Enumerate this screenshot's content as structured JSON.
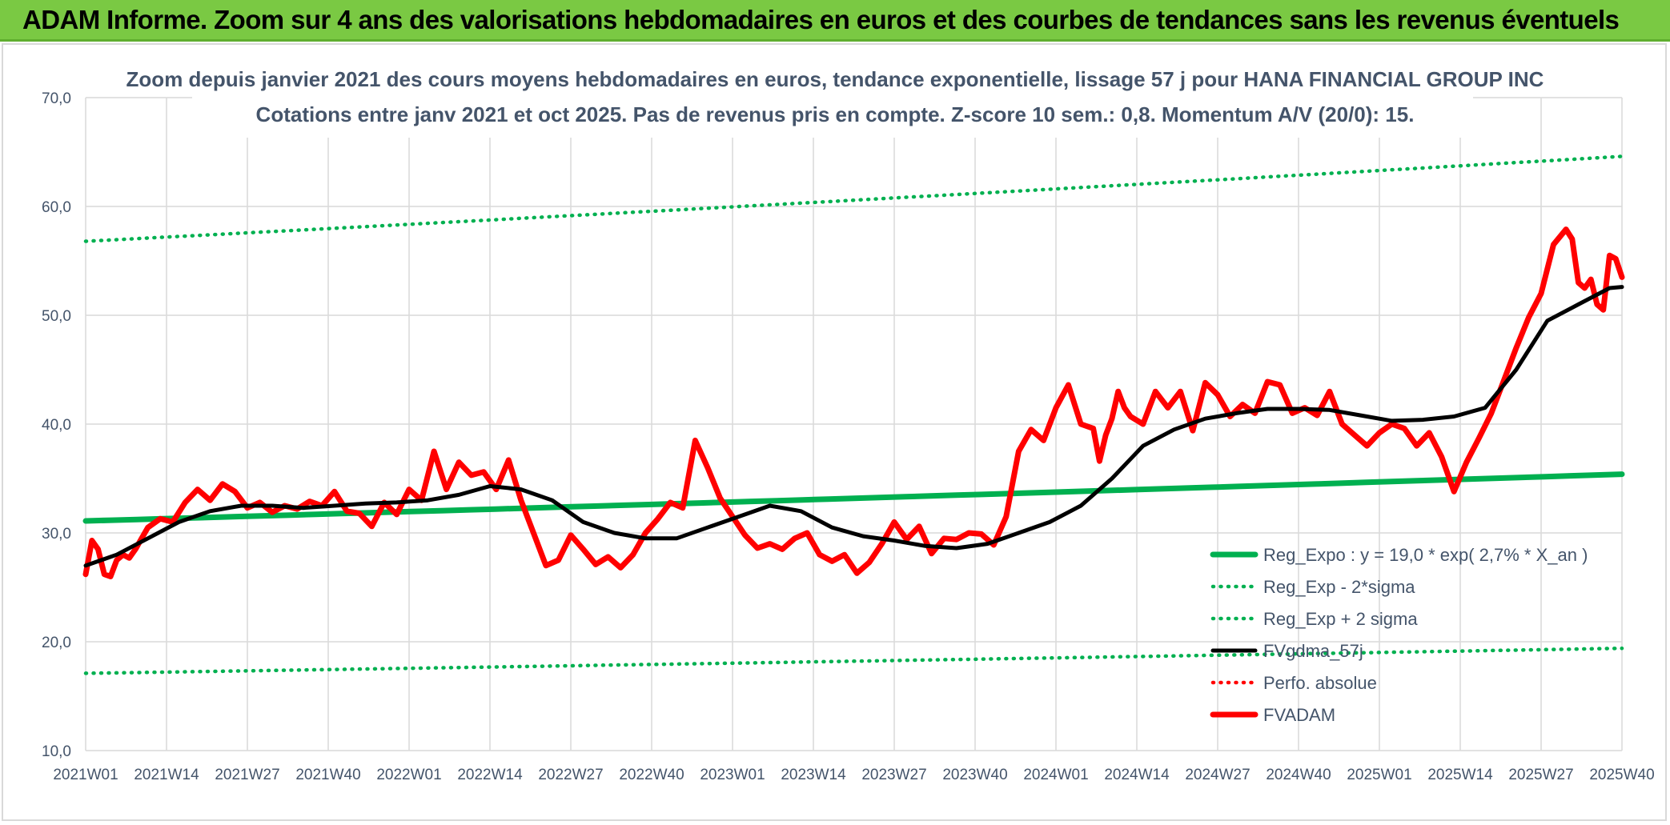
{
  "header": {
    "title": "ADAM Informe. Zoom sur 4 ans des valorisations hebdomadaires en euros et des courbes de tendances sans les revenus éventuels"
  },
  "colors": {
    "banner": "#7ac943",
    "reg_expo": "#00b050",
    "fvgdma": "#000000",
    "fvadam": "#ff0000",
    "perfo": "#ff0000",
    "text": "#44546a",
    "grid": "#d9d9d9"
  },
  "chart_data": {
    "type": "line",
    "title": "Zoom depuis janvier 2021 des cours moyens hebdomadaires en euros, tendance exponentielle, lissage 57 j pour HANA FINANCIAL GROUP INC",
    "subtitle": "Cotations entre janv 2021 et oct 2025. Pas de revenus pris en compte. Z-score 10 sem.: 0,8. Momentum A/V (20/0): 15.",
    "xlabel": "",
    "ylabel": "",
    "ylim": [
      10,
      70
    ],
    "y_ticks": [
      "70,0",
      "60,0",
      "50,0",
      "40,0",
      "30,0",
      "20,0",
      "10,0"
    ],
    "x_ticks": [
      "2021W01",
      "2021W14",
      "2021W27",
      "2021W40",
      "2022W01",
      "2022W14",
      "2022W27",
      "2022W40",
      "2023W01",
      "2023W14",
      "2023W27",
      "2023W40",
      "2024W01",
      "2024W14",
      "2024W27",
      "2024W40",
      "2025W01",
      "2025W14",
      "2025W27",
      "2025W40"
    ],
    "x_range_weeks": [
      0,
      247
    ],
    "legend_position": "bottom-right",
    "series": [
      {
        "name": "Reg_Expo : y = 19,0 * exp( 2,7% *  X_an )",
        "style": "solid-thick",
        "color": "#00b050",
        "x": [
          0,
          247
        ],
        "values": [
          31.1,
          35.4
        ]
      },
      {
        "name": "Reg_Exp - 2*sigma",
        "style": "dotted",
        "color": "#00b050",
        "x": [
          0,
          247
        ],
        "values": [
          17.1,
          19.4
        ]
      },
      {
        "name": "Reg_Exp + 2 sigma",
        "style": "dotted",
        "color": "#00b050",
        "x": [
          0,
          247
        ],
        "values": [
          56.8,
          64.6
        ]
      },
      {
        "name": "FVgdma_57j",
        "style": "solid",
        "color": "#000000",
        "x": [
          0,
          5,
          10,
          15,
          20,
          25,
          30,
          35,
          40,
          45,
          50,
          55,
          60,
          65,
          70,
          75,
          80,
          85,
          90,
          95,
          100,
          105,
          110,
          115,
          120,
          125,
          130,
          135,
          140,
          145,
          150,
          155,
          160,
          165,
          170,
          175,
          180,
          185,
          190,
          195,
          200,
          205,
          210,
          215,
          220,
          225,
          230,
          235,
          240,
          245,
          247
        ],
        "values": [
          27.0,
          28.0,
          29.5,
          31.0,
          32.0,
          32.5,
          32.5,
          32.3,
          32.5,
          32.7,
          32.8,
          33.0,
          33.5,
          34.3,
          34.0,
          33.0,
          31.0,
          30.0,
          29.5,
          29.5,
          30.5,
          31.5,
          32.5,
          32.0,
          30.5,
          29.7,
          29.3,
          28.8,
          28.6,
          29.0,
          30.0,
          31.0,
          32.5,
          35.0,
          38.0,
          39.5,
          40.5,
          41.0,
          41.4,
          41.4,
          41.3,
          40.8,
          40.3,
          40.4,
          40.7,
          41.5,
          45.0,
          49.5,
          51.0,
          52.5,
          52.6
        ]
      },
      {
        "name": "Perfo. absolue",
        "style": "dotted",
        "color": "#ff0000",
        "x": [],
        "values": []
      },
      {
        "name": "FVADAM",
        "style": "solid-thick",
        "color": "#ff0000",
        "x": [
          0,
          1,
          2,
          3,
          4,
          5,
          6,
          7,
          8,
          9,
          10,
          12,
          14,
          16,
          18,
          20,
          22,
          24,
          26,
          28,
          30,
          32,
          34,
          36,
          38,
          40,
          42,
          44,
          46,
          48,
          50,
          52,
          54,
          56,
          58,
          60,
          62,
          64,
          66,
          68,
          70,
          72,
          74,
          76,
          78,
          80,
          82,
          84,
          86,
          88,
          90,
          92,
          94,
          96,
          98,
          100,
          102,
          104,
          106,
          108,
          110,
          112,
          114,
          116,
          118,
          120,
          122,
          124,
          126,
          128,
          130,
          132,
          134,
          136,
          138,
          140,
          142,
          144,
          146,
          148,
          150,
          152,
          154,
          156,
          158,
          160,
          162,
          163,
          164,
          165,
          166,
          167,
          168,
          170,
          172,
          174,
          176,
          178,
          180,
          182,
          184,
          186,
          188,
          190,
          192,
          194,
          196,
          198,
          200,
          202,
          204,
          206,
          208,
          210,
          212,
          214,
          216,
          218,
          220,
          222,
          224,
          226,
          228,
          230,
          232,
          234,
          236,
          238,
          239,
          240,
          241,
          242,
          243,
          244,
          245,
          246,
          247
        ],
        "values": [
          26.2,
          29.3,
          28.5,
          26.2,
          26.0,
          27.5,
          28.0,
          27.7,
          28.5,
          29.5,
          30.5,
          31.3,
          31.0,
          32.8,
          34.0,
          33.0,
          34.5,
          33.8,
          32.3,
          32.8,
          31.9,
          32.5,
          32.2,
          32.9,
          32.5,
          33.8,
          32.0,
          31.8,
          30.6,
          32.8,
          31.7,
          34.0,
          33.0,
          37.5,
          34.0,
          36.5,
          35.3,
          35.6,
          34.0,
          36.7,
          33.0,
          30.0,
          27.0,
          27.5,
          29.8,
          28.5,
          27.1,
          27.8,
          26.8,
          28.0,
          30.0,
          31.3,
          32.8,
          32.3,
          38.5,
          36.0,
          33.2,
          31.5,
          29.8,
          28.6,
          29.0,
          28.5,
          29.5,
          30.0,
          28.0,
          27.4,
          28.0,
          26.3,
          27.3,
          29.0,
          31.0,
          29.4,
          30.6,
          28.1,
          29.5,
          29.4,
          30.0,
          29.9,
          28.9,
          31.5,
          37.5,
          39.5,
          38.5,
          41.5,
          43.6,
          40.0,
          39.6,
          36.6,
          39.0,
          40.5,
          43.0,
          41.5,
          40.7,
          40.0,
          43.0,
          41.5,
          43.0,
          39.4,
          43.8,
          42.7,
          40.7,
          41.8,
          41.0,
          43.9,
          43.6,
          41.0,
          41.5,
          40.8,
          43.0,
          40.0,
          39.0,
          38.0,
          39.2,
          40.0,
          39.6,
          38.0,
          39.2,
          37.0,
          33.8,
          36.5,
          38.7,
          41.0,
          44.0,
          47.0,
          49.8,
          52.0,
          56.5,
          57.9,
          57.0,
          53.0,
          52.5,
          53.3,
          51.0,
          50.5,
          55.5,
          55.2,
          53.5
        ]
      }
    ]
  }
}
